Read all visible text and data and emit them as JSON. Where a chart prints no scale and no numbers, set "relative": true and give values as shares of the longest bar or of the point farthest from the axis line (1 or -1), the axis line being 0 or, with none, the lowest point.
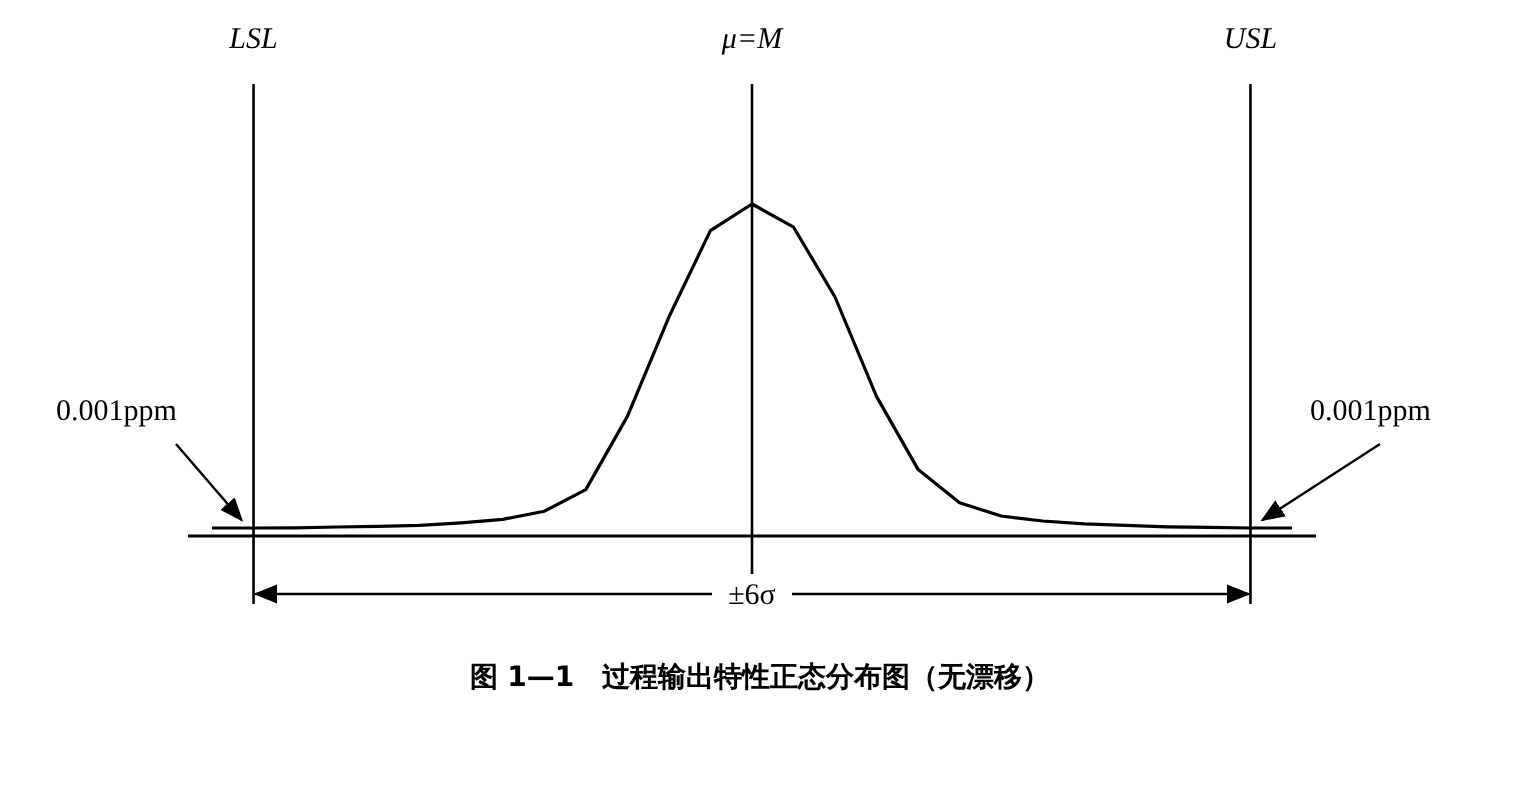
{
  "chart_data": {
    "type": "line",
    "relative": true,
    "color": "#000000",
    "categories": [
      null,
      "LSL",
      null,
      null,
      null,
      null,
      null,
      null,
      null,
      null,
      null,
      null,
      null,
      "μ=M",
      null,
      null,
      null,
      null,
      null,
      null,
      null,
      null,
      null,
      null,
      null,
      "USL",
      null
    ],
    "values": [
      0.024,
      0.024,
      0.025,
      0.027,
      0.029,
      0.032,
      0.04,
      0.05,
      0.075,
      0.14,
      0.36,
      0.66,
      0.92,
      1,
      0.93,
      0.72,
      0.42,
      0.2,
      0.1,
      0.06,
      0.045,
      0.037,
      0.032,
      0.028,
      0.026,
      0.024,
      0.024
    ],
    "ref_lines": [
      {
        "axis": "x",
        "value": "LSL"
      },
      {
        "axis": "x",
        "value": "μ=M"
      },
      {
        "axis": "x",
        "value": "USL"
      }
    ],
    "annotations": [
      {
        "text": "0.001ppm",
        "x": "LSL",
        "y": 0.024
      },
      {
        "text": "0.001ppm",
        "x": "USL",
        "y": 0.024
      },
      "±6σ",
      "图 1—1　过程输出特性正态分布图（无漂移）"
    ]
  }
}
